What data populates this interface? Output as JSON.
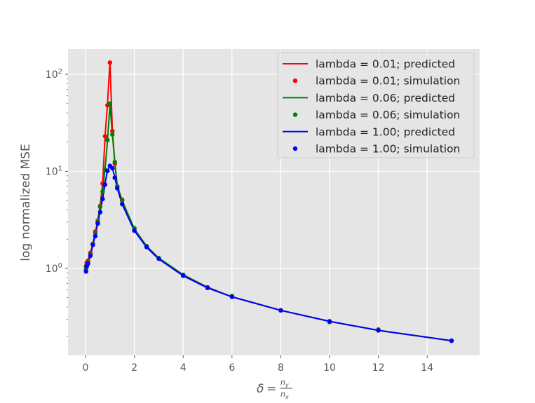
{
  "chart_data": {
    "type": "line",
    "title": "",
    "xlabel": "δ = n_y / n_x",
    "ylabel": "log normalized MSE",
    "xscale": "linear",
    "yscale": "log",
    "xlim": [
      -0.7,
      16.2
    ],
    "ylim": [
      0.13,
      220
    ],
    "xticks": [
      0,
      2,
      4,
      6,
      8,
      10,
      12,
      14
    ],
    "yticks": [
      {
        "value": 1,
        "label": "10^0"
      },
      {
        "value": 10,
        "label": "10^1"
      },
      {
        "value": 100,
        "label": "10^2"
      }
    ],
    "grid": true,
    "legend_position": "upper right",
    "x": [
      0.02,
      0.05,
      0.1,
      0.2,
      0.3,
      0.4,
      0.5,
      0.6,
      0.7,
      0.8,
      0.9,
      1.0,
      1.1,
      1.2,
      1.3,
      1.5,
      2.0,
      2.5,
      3.0,
      4.0,
      5.0,
      6.0,
      8.0,
      10.0,
      12.0,
      15.0
    ],
    "series": [
      {
        "name": "lambda = 0.01",
        "color": "#ff0000",
        "predicted": [
          1.05,
          1.12,
          1.22,
          1.45,
          1.8,
          2.35,
          3.1,
          4.5,
          7.5,
          23,
          50,
          135,
          26,
          12,
          7.2,
          5.0,
          2.55,
          1.7,
          1.28,
          0.86,
          0.64,
          0.51,
          0.37,
          0.285,
          0.23,
          0.18
        ],
        "simulation": [
          1.05,
          1.15,
          1.2,
          1.45,
          1.8,
          2.4,
          3.1,
          4.4,
          7.5,
          23,
          48,
          132,
          26,
          12,
          7.0,
          5.1,
          2.55,
          1.68,
          1.27,
          0.85,
          0.64,
          0.51,
          0.37,
          0.285,
          0.23,
          0.18
        ]
      },
      {
        "name": "lambda = 0.06",
        "color": "#008000",
        "predicted": [
          1.0,
          1.08,
          1.18,
          1.42,
          1.78,
          2.3,
          3.05,
          4.4,
          6.3,
          10.5,
          21,
          48,
          24,
          12.5,
          7.0,
          5.0,
          2.55,
          1.7,
          1.28,
          0.86,
          0.64,
          0.51,
          0.37,
          0.285,
          0.23,
          0.18
        ],
        "simulation": [
          0.98,
          1.1,
          1.15,
          1.4,
          1.78,
          2.3,
          3.0,
          4.3,
          6.2,
          10.4,
          21,
          50,
          24,
          12.5,
          7.0,
          5.0,
          2.6,
          1.7,
          1.28,
          0.86,
          0.63,
          0.52,
          0.37,
          0.28,
          0.235,
          0.18
        ]
      },
      {
        "name": "lambda = 1.00",
        "color": "#0000ff",
        "predicted": [
          0.93,
          1.05,
          1.12,
          1.35,
          1.75,
          2.2,
          2.9,
          3.9,
          5.2,
          7.5,
          10.3,
          11.3,
          10.8,
          8.7,
          6.7,
          4.6,
          2.45,
          1.65,
          1.25,
          0.84,
          0.63,
          0.51,
          0.37,
          0.285,
          0.23,
          0.18
        ],
        "simulation": [
          0.93,
          1.05,
          1.12,
          1.35,
          1.75,
          2.15,
          2.9,
          3.8,
          5.2,
          7.3,
          10.1,
          11.4,
          10.8,
          8.6,
          6.7,
          4.6,
          2.45,
          1.66,
          1.26,
          0.84,
          0.63,
          0.51,
          0.37,
          0.285,
          0.23,
          0.18
        ]
      }
    ],
    "legend": [
      {
        "label": "lambda = 0.01; predicted",
        "color": "#ff0000",
        "kind": "line"
      },
      {
        "label": "lambda = 0.01; simulation",
        "color": "#ff0000",
        "kind": "marker"
      },
      {
        "label": "lambda = 0.06; predicted",
        "color": "#008000",
        "kind": "line"
      },
      {
        "label": "lambda = 0.06; simulation",
        "color": "#008000",
        "kind": "marker"
      },
      {
        "label": "lambda = 1.00; predicted",
        "color": "#0000ff",
        "kind": "line"
      },
      {
        "label": "lambda = 1.00; simulation",
        "color": "#0000ff",
        "kind": "marker"
      }
    ]
  },
  "style": {
    "plot_background": "#e5e5e5",
    "grid_color": "#ffffff",
    "tick_color": "#555555"
  }
}
